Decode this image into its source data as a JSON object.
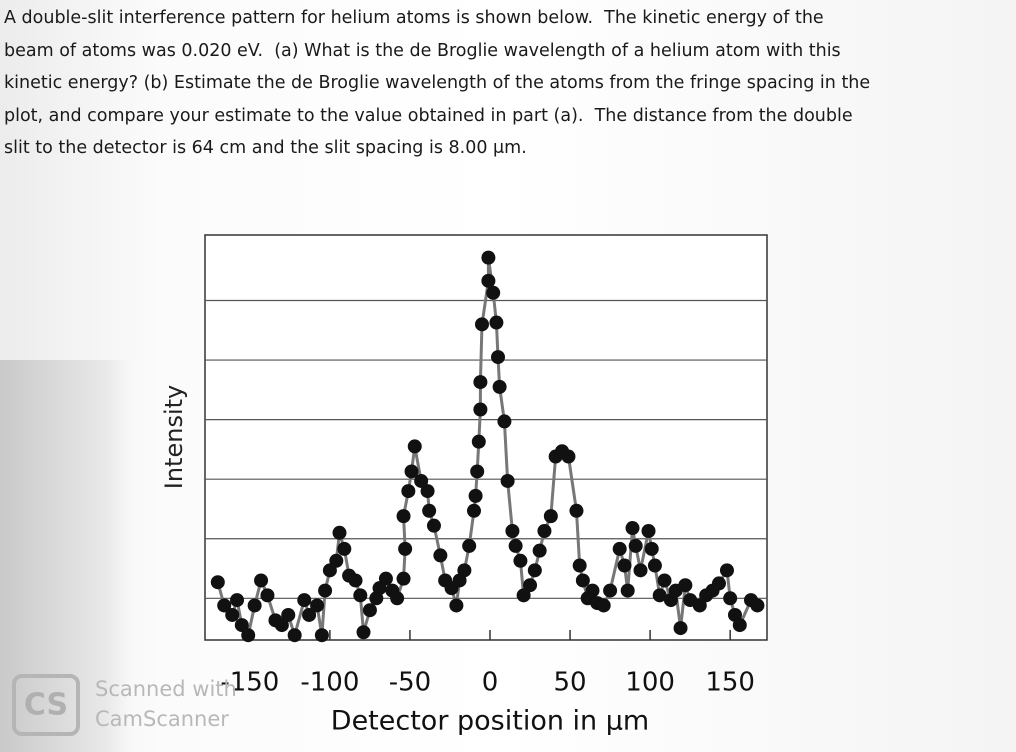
{
  "problem": {
    "lines": [
      "A double-slit interference pattern for helium atoms is shown below.  The kinetic energy of the",
      "beam of atoms was 0.020 eV.  (a) What is the de Broglie wavelength of a helium atom with this",
      "kinetic energy? (b) Estimate the de Broglie wavelength of the atoms from the fringe spacing in the",
      "plot, and compare your estimate to the value obtained in part (a).  The distance from the double",
      "slit to the detector is 64 cm and the slit spacing is 8.00 μm."
    ]
  },
  "chart_data": {
    "type": "scatter",
    "line": true,
    "color": "#111111",
    "line_color": "#777777",
    "x_label": "Detector position in μm",
    "y_label": "Intensity",
    "xlim": [
      -178,
      173
    ],
    "xticks": [
      -150,
      -100,
      -50,
      0,
      50,
      100,
      150
    ],
    "ylim": [
      0,
      6.8
    ],
    "yticks": [
      0.7,
      1.7,
      2.7,
      3.7,
      4.7,
      5.7
    ],
    "grid": true,
    "x": [
      -170,
      -166,
      -161,
      -158,
      -155,
      -151,
      -147,
      -143,
      -139,
      -134,
      -130,
      -126,
      -122,
      -116,
      -113,
      -108,
      -105,
      -103,
      -100,
      -96,
      -94,
      -91,
      -88,
      -84,
      -81,
      -79,
      -75,
      -71,
      -69,
      -65,
      -61,
      -58,
      -54,
      -53,
      -54,
      -51,
      -49,
      -47,
      -43,
      -39,
      -38,
      -35,
      -31,
      -28,
      -24,
      -21,
      -19,
      -16,
      -13,
      -10,
      -9,
      -8,
      -7,
      -6,
      -6,
      -5,
      -1,
      -1,
      2,
      4,
      5,
      6,
      9,
      11,
      14,
      16,
      19,
      21,
      25,
      28,
      31,
      34,
      38,
      41,
      45,
      49,
      54,
      56,
      58,
      61,
      64,
      67,
      71,
      75,
      81,
      84,
      86,
      89,
      91,
      94,
      99,
      101,
      103,
      106,
      109,
      113,
      116,
      119,
      122,
      125,
      131,
      135,
      139,
      143,
      148,
      150,
      153,
      156,
      163,
      167
    ],
    "y": [
      0.97,
      0.58,
      0.42,
      0.67,
      0.25,
      0.08,
      0.58,
      1.0,
      0.75,
      0.33,
      0.25,
      0.42,
      0.08,
      0.67,
      0.42,
      0.58,
      0.08,
      0.83,
      1.17,
      1.33,
      1.8,
      1.53,
      1.08,
      1.0,
      0.75,
      0.13,
      0.5,
      0.7,
      0.87,
      1.03,
      0.83,
      0.7,
      1.03,
      1.53,
      2.08,
      2.5,
      2.83,
      3.25,
      2.67,
      2.5,
      2.17,
      1.92,
      1.42,
      1.0,
      0.87,
      0.58,
      1.0,
      1.17,
      1.58,
      2.17,
      2.42,
      2.83,
      3.33,
      3.87,
      4.33,
      5.3,
      6.03,
      6.42,
      5.83,
      5.33,
      4.75,
      4.25,
      3.67,
      2.67,
      1.83,
      1.58,
      1.33,
      0.75,
      0.92,
      1.17,
      1.5,
      1.83,
      2.08,
      3.08,
      3.17,
      3.08,
      2.17,
      1.25,
      1.0,
      0.7,
      0.83,
      0.62,
      0.58,
      0.83,
      1.53,
      1.25,
      0.83,
      1.88,
      1.58,
      1.17,
      1.83,
      1.53,
      1.25,
      0.75,
      1.0,
      0.67,
      0.83,
      0.2,
      0.92,
      0.67,
      0.58,
      0.75,
      0.83,
      0.95,
      1.17,
      0.7,
      0.42,
      0.25,
      0.67,
      0.58
    ]
  },
  "watermark": {
    "logo": "CS",
    "line1": "Scanned with",
    "line2": "CamScanner"
  }
}
